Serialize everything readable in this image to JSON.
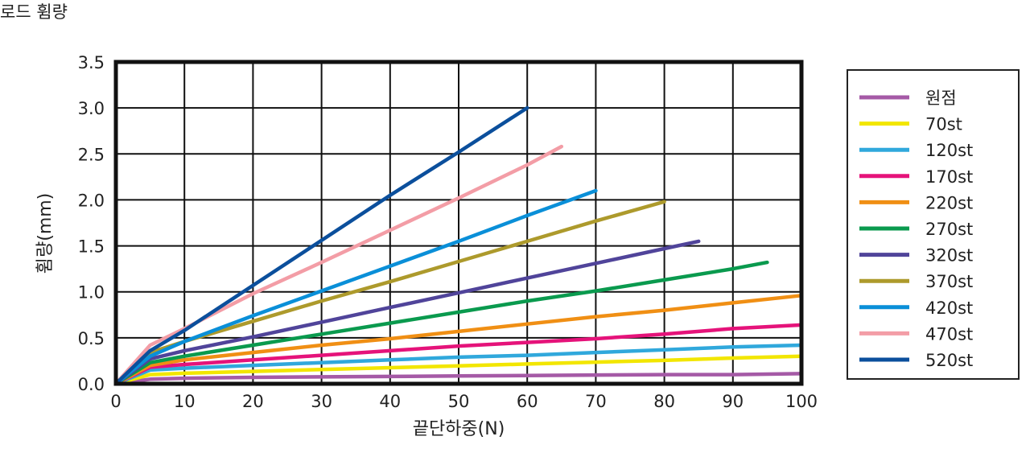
{
  "chart_data": {
    "type": "line",
    "title": "로드 휨량",
    "xlabel": "끝단하중(N)",
    "ylabel": "휨량(mm)",
    "xlim": [
      0,
      100
    ],
    "ylim": [
      0,
      3.5
    ],
    "x_ticks": [
      "0",
      "10",
      "20",
      "30",
      "40",
      "50",
      "60",
      "70",
      "80",
      "90",
      "100"
    ],
    "y_ticks": [
      "0.0",
      "0.5",
      "1.0",
      "1.5",
      "2.0",
      "2.5",
      "3.0",
      "3.5"
    ],
    "grid": true,
    "legend": "right",
    "series": [
      {
        "name": "원점",
        "color": "#a55aa6",
        "points": [
          [
            0,
            0
          ],
          [
            5,
            0.05
          ],
          [
            10,
            0.06
          ],
          [
            20,
            0.07
          ],
          [
            30,
            0.075
          ],
          [
            40,
            0.08
          ],
          [
            50,
            0.085
          ],
          [
            60,
            0.09
          ],
          [
            70,
            0.095
          ],
          [
            80,
            0.1
          ],
          [
            90,
            0.1
          ],
          [
            100,
            0.11
          ]
        ]
      },
      {
        "name": "70st",
        "color": "#f2e600",
        "points": [
          [
            0,
            0
          ],
          [
            5,
            0.1
          ],
          [
            10,
            0.115
          ],
          [
            20,
            0.135
          ],
          [
            30,
            0.155
          ],
          [
            40,
            0.175
          ],
          [
            50,
            0.195
          ],
          [
            60,
            0.215
          ],
          [
            70,
            0.235
          ],
          [
            80,
            0.255
          ],
          [
            90,
            0.28
          ],
          [
            100,
            0.3
          ]
        ]
      },
      {
        "name": "120st",
        "color": "#30a8dc",
        "points": [
          [
            0,
            0
          ],
          [
            5,
            0.15
          ],
          [
            10,
            0.17
          ],
          [
            20,
            0.2
          ],
          [
            30,
            0.23
          ],
          [
            40,
            0.26
          ],
          [
            50,
            0.29
          ],
          [
            60,
            0.31
          ],
          [
            70,
            0.34
          ],
          [
            80,
            0.37
          ],
          [
            90,
            0.4
          ],
          [
            100,
            0.42
          ]
        ]
      },
      {
        "name": "170st",
        "color": "#e5137a",
        "points": [
          [
            0,
            0
          ],
          [
            5,
            0.18
          ],
          [
            10,
            0.21
          ],
          [
            20,
            0.26
          ],
          [
            30,
            0.31
          ],
          [
            40,
            0.36
          ],
          [
            50,
            0.41
          ],
          [
            60,
            0.45
          ],
          [
            70,
            0.49
          ],
          [
            80,
            0.54
          ],
          [
            90,
            0.6
          ],
          [
            100,
            0.64
          ]
        ]
      },
      {
        "name": "220st",
        "color": "#f08f14",
        "points": [
          [
            0,
            0
          ],
          [
            5,
            0.2
          ],
          [
            10,
            0.26
          ],
          [
            20,
            0.34
          ],
          [
            30,
            0.42
          ],
          [
            40,
            0.49
          ],
          [
            50,
            0.57
          ],
          [
            60,
            0.65
          ],
          [
            70,
            0.73
          ],
          [
            80,
            0.8
          ],
          [
            90,
            0.88
          ],
          [
            100,
            0.96
          ]
        ]
      },
      {
        "name": "270st",
        "color": "#0a9a4e",
        "points": [
          [
            0,
            0
          ],
          [
            5,
            0.23
          ],
          [
            10,
            0.3
          ],
          [
            20,
            0.42
          ],
          [
            30,
            0.54
          ],
          [
            40,
            0.66
          ],
          [
            50,
            0.78
          ],
          [
            60,
            0.9
          ],
          [
            70,
            1.01
          ],
          [
            80,
            1.13
          ],
          [
            90,
            1.25
          ],
          [
            95,
            1.32
          ]
        ]
      },
      {
        "name": "320st",
        "color": "#50449a",
        "points": [
          [
            0,
            0
          ],
          [
            5,
            0.27
          ],
          [
            10,
            0.36
          ],
          [
            20,
            0.51
          ],
          [
            30,
            0.67
          ],
          [
            40,
            0.83
          ],
          [
            50,
            0.99
          ],
          [
            60,
            1.15
          ],
          [
            70,
            1.31
          ],
          [
            80,
            1.47
          ],
          [
            85,
            1.55
          ]
        ]
      },
      {
        "name": "370st",
        "color": "#ad9a2c",
        "points": [
          [
            0,
            0
          ],
          [
            5,
            0.34
          ],
          [
            10,
            0.46
          ],
          [
            20,
            0.68
          ],
          [
            30,
            0.9
          ],
          [
            40,
            1.11
          ],
          [
            50,
            1.33
          ],
          [
            60,
            1.55
          ],
          [
            70,
            1.77
          ],
          [
            80,
            1.98
          ]
        ]
      },
      {
        "name": "420st",
        "color": "#0a8fd8",
        "points": [
          [
            0,
            0
          ],
          [
            5,
            0.3
          ],
          [
            10,
            0.46
          ],
          [
            20,
            0.74
          ],
          [
            30,
            1.01
          ],
          [
            40,
            1.28
          ],
          [
            50,
            1.55
          ],
          [
            60,
            1.83
          ],
          [
            70,
            2.1
          ]
        ]
      },
      {
        "name": "470st",
        "color": "#f39da6",
        "points": [
          [
            0,
            0
          ],
          [
            5,
            0.42
          ],
          [
            10,
            0.6
          ],
          [
            20,
            0.98
          ],
          [
            30,
            1.32
          ],
          [
            40,
            1.67
          ],
          [
            50,
            2.02
          ],
          [
            60,
            2.38
          ],
          [
            65,
            2.58
          ]
        ]
      },
      {
        "name": "520st",
        "color": "#0b4f9c",
        "points": [
          [
            0,
            0
          ],
          [
            5,
            0.36
          ],
          [
            10,
            0.58
          ],
          [
            20,
            1.07
          ],
          [
            30,
            1.56
          ],
          [
            40,
            2.05
          ],
          [
            50,
            2.52
          ],
          [
            60,
            3.0
          ]
        ]
      }
    ]
  }
}
